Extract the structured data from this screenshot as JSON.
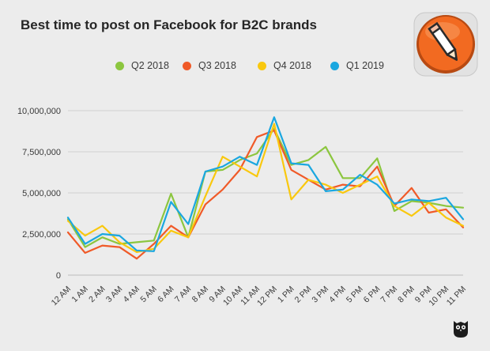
{
  "title": "Best time to post on Facebook for B2C brands",
  "colors": {
    "background": "#ececec",
    "grid": "#cfcfcf",
    "badge_orange": "#f26a21",
    "q2_2018": "#8cc63f",
    "q3_2018": "#f05a28",
    "q4_2018": "#f9c80e",
    "q1_2019": "#1aa7e0"
  },
  "icons": {
    "badge": "pencil-badge-icon",
    "brand": "owl-logo-icon"
  },
  "chart_data": {
    "type": "line",
    "title": "Best time to post on Facebook for B2C brands",
    "xlabel": "",
    "ylabel": "",
    "ylim": [
      0,
      10000000
    ],
    "yticks": [
      0,
      2500000,
      5000000,
      7500000,
      10000000
    ],
    "ytick_labels": [
      "0",
      "2,500,000",
      "5,000,000",
      "7,500,000",
      "10,000,000"
    ],
    "grid": true,
    "legend_position": "top-center",
    "categories": [
      "12 AM",
      "1 AM",
      "2 AM",
      "3 AM",
      "4 AM",
      "5 AM",
      "6 AM",
      "7 AM",
      "8 AM",
      "9 AM",
      "10 AM",
      "11 AM",
      "12 PM",
      "1 PM",
      "2 PM",
      "3 PM",
      "4 PM",
      "5 PM",
      "6 PM",
      "7 PM",
      "8 PM",
      "9 PM",
      "10 PM",
      "11 PM"
    ],
    "series": [
      {
        "name": "Q2 2018",
        "color": "#8cc63f",
        "values": [
          3400000,
          1700000,
          2300000,
          1900000,
          2000000,
          2100000,
          4950000,
          2300000,
          6300000,
          6400000,
          7000000,
          7400000,
          8900000,
          6700000,
          7000000,
          7800000,
          5900000,
          5900000,
          7100000,
          3900000,
          4500000,
          4400000,
          4200000,
          4100000
        ]
      },
      {
        "name": "Q3 2018",
        "color": "#f05a28",
        "values": [
          2600000,
          1350000,
          1800000,
          1700000,
          1000000,
          1900000,
          3000000,
          2300000,
          4300000,
          5200000,
          6400000,
          8400000,
          8800000,
          6400000,
          5800000,
          5200000,
          5500000,
          5400000,
          6600000,
          4200000,
          5300000,
          3800000,
          4000000,
          2900000
        ]
      },
      {
        "name": "Q4 2018",
        "color": "#f9c80e",
        "values": [
          3300000,
          2400000,
          3000000,
          2000000,
          1400000,
          1600000,
          2700000,
          2300000,
          4800000,
          7200000,
          6600000,
          6000000,
          9200000,
          4600000,
          5800000,
          5500000,
          5000000,
          5500000,
          6000000,
          4200000,
          3600000,
          4400000,
          3500000,
          3000000
        ]
      },
      {
        "name": "Q1 2019",
        "color": "#1aa7e0",
        "values": [
          3500000,
          1900000,
          2500000,
          2400000,
          1500000,
          1450000,
          4450000,
          3100000,
          6300000,
          6600000,
          7200000,
          6700000,
          9600000,
          6800000,
          6700000,
          5100000,
          5200000,
          6100000,
          5500000,
          4350000,
          4600000,
          4500000,
          4700000,
          3400000
        ]
      }
    ]
  }
}
